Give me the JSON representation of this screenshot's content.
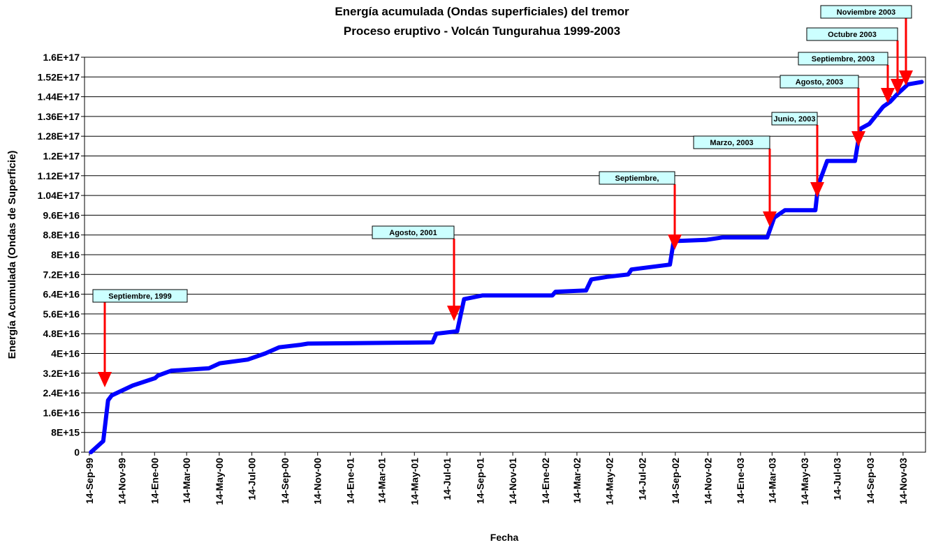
{
  "chart_data": {
    "type": "line",
    "title": "Energía acumulada (Ondas superficiales) del tremor",
    "subtitle": "Proceso eruptivo - Volcán Tungurahua 1999-2003",
    "x_label": "Fecha",
    "y_label": "Energía Acumulada (Ondas de Superficie)",
    "grid": true,
    "x": [
      "1999-09-17",
      "1999-10-06",
      "1999-10-10",
      "1999-10-19",
      "1999-10-26",
      "1999-12-04",
      "2000-01-15",
      "2000-01-20",
      "2000-02-14",
      "2000-04-25",
      "2000-05-15",
      "2000-07-06",
      "2000-08-08",
      "2000-09-03",
      "2000-10-13",
      "2000-10-27",
      "2001-06-17",
      "2001-06-24",
      "2001-08-02",
      "2001-08-15",
      "2001-09-18",
      "2002-01-27",
      "2002-02-02",
      "2002-03-31",
      "2002-04-10",
      "2002-05-09",
      "2002-06-18",
      "2002-06-24",
      "2002-09-04",
      "2002-09-11",
      "2002-11-10",
      "2002-12-12",
      "2003-03-05",
      "2003-03-18",
      "2003-04-07",
      "2003-06-03",
      "2003-06-08",
      "2003-06-25",
      "2003-08-16",
      "2003-08-26",
      "2003-09-12",
      "2003-10-08",
      "2003-10-21",
      "2003-11-03",
      "2003-11-23",
      "2003-12-19"
    ],
    "series": [
      {
        "name": "Energía acumulada",
        "color": "#0000ff",
        "values": [
          0,
          3700000000000000.0,
          4500000000000000.0,
          2.1e+16,
          2.3e+16,
          2.7e+16,
          3e+16,
          3.1e+16,
          3.3e+16,
          3.4e+16,
          3.6e+16,
          3.75e+16,
          4e+16,
          4.25e+16,
          4.35e+16,
          4.4e+16,
          4.45e+16,
          4.8e+16,
          4.9e+16,
          6.2e+16,
          6.35e+16,
          6.35e+16,
          6.5e+16,
          6.55e+16,
          7e+16,
          7.1e+16,
          7.2e+16,
          7.4e+16,
          7.6e+16,
          8.55e+16,
          8.6e+16,
          8.7e+16,
          8.7e+16,
          9.5e+16,
          9.8e+16,
          9.8e+16,
          1.08e+17,
          1.18e+17,
          1.18e+17,
          1.31e+17,
          1.33e+17,
          1.4e+17,
          1.42e+17,
          1.45e+17,
          1.49e+17,
          1.5e+17
        ]
      }
    ],
    "xlim": [
      "1999-09-05",
      "2003-12-26"
    ],
    "xticks": [
      {
        "value": "1999-09-14",
        "label": "14-Sep-99"
      },
      {
        "value": "1999-11-14",
        "label": "14-Nov-99"
      },
      {
        "value": "2000-01-14",
        "label": "14-Ene-00"
      },
      {
        "value": "2000-03-14",
        "label": "14-Mar-00"
      },
      {
        "value": "2000-05-14",
        "label": "14-May-00"
      },
      {
        "value": "2000-07-14",
        "label": "14-Jul-00"
      },
      {
        "value": "2000-09-14",
        "label": "14-Sep-00"
      },
      {
        "value": "2000-11-14",
        "label": "14-Nov-00"
      },
      {
        "value": "2001-01-14",
        "label": "14-Ene-01"
      },
      {
        "value": "2001-03-14",
        "label": "14-Mar-01"
      },
      {
        "value": "2001-05-14",
        "label": "14-May-01"
      },
      {
        "value": "2001-07-14",
        "label": "14-Jul-01"
      },
      {
        "value": "2001-09-14",
        "label": "14-Sep-01"
      },
      {
        "value": "2001-11-14",
        "label": "14-Nov-01"
      },
      {
        "value": "2002-01-14",
        "label": "14-Ene-02"
      },
      {
        "value": "2002-03-14",
        "label": "14-Mar-02"
      },
      {
        "value": "2002-05-14",
        "label": "14-May-02"
      },
      {
        "value": "2002-07-14",
        "label": "14-Jul-02"
      },
      {
        "value": "2002-09-14",
        "label": "14-Sep-02"
      },
      {
        "value": "2002-11-14",
        "label": "14-Nov-02"
      },
      {
        "value": "2003-01-14",
        "label": "14-Ene-03"
      },
      {
        "value": "2003-03-14",
        "label": "14-Mar-03"
      },
      {
        "value": "2003-05-14",
        "label": "14-May-03"
      },
      {
        "value": "2003-07-14",
        "label": "14-Jul-03"
      },
      {
        "value": "2003-09-14",
        "label": "14-Sep-03"
      },
      {
        "value": "2003-11-14",
        "label": "14-Nov-03"
      }
    ],
    "ylim": [
      0,
      1.6e+17
    ],
    "yticks": [
      0,
      {
        "value": 8000000000000000.0,
        "label": "8E+15"
      },
      {
        "value": 1.6e+16,
        "label": "1.6E+16"
      },
      {
        "value": 2.4e+16,
        "label": "2.4E+16"
      },
      {
        "value": 3.2e+16,
        "label": "3.2E+16"
      },
      {
        "value": 4e+16,
        "label": "4E+16"
      },
      {
        "value": 4.8e+16,
        "label": "4.8E+16"
      },
      {
        "value": 5.6e+16,
        "label": "5.6E+16"
      },
      {
        "value": 6.4e+16,
        "label": "6.4E+16"
      },
      {
        "value": 7.2e+16,
        "label": "7.2E+16"
      },
      {
        "value": 8e+16,
        "label": "8E+16"
      },
      {
        "value": 8.8e+16,
        "label": "8.8E+16"
      },
      {
        "value": 9.6e+16,
        "label": "9.6E+16"
      },
      {
        "value": 1.04e+17,
        "label": "1.04E+17"
      },
      {
        "value": 1.12e+17,
        "label": "1.12E+17"
      },
      {
        "value": 1.2e+17,
        "label": "1.2E+17"
      },
      {
        "value": 1.28e+17,
        "label": "1.28E+17"
      },
      {
        "value": 1.36e+17,
        "label": "1.36E+17"
      },
      {
        "value": 1.44e+17,
        "label": "1.44E+17"
      },
      {
        "value": 1.52e+17,
        "label": "1.52E+17"
      },
      {
        "value": 1.6e+17,
        "label": "1.6E+17"
      }
    ],
    "annotations": [
      "Septiembre, 1999",
      "Agosto, 2001",
      "Septiembre,",
      "Marzo, 2003",
      "Junio, 2003",
      "Agosto, 2003",
      "Septiembre, 2003",
      "Octubre 2003",
      "Noviembre 2003"
    ]
  }
}
